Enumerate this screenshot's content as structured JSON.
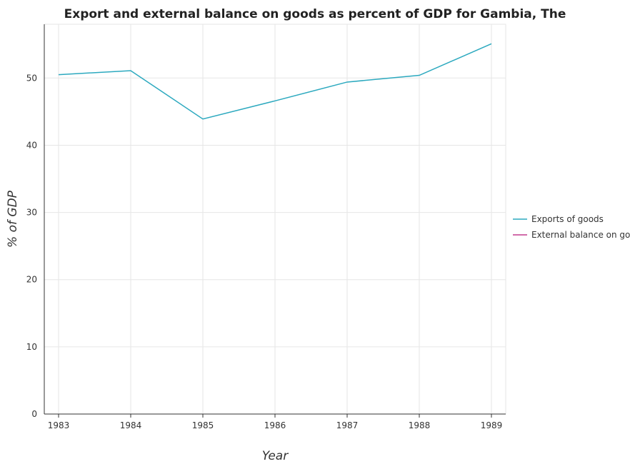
{
  "chart_data": {
    "type": "line",
    "title": "Export and external balance on goods as percent of GDP for Gambia, The",
    "xlabel": "Year",
    "ylabel": "% of GDP",
    "categories": [
      "1983",
      "1984",
      "1985",
      "1986",
      "1987",
      "1988",
      "1989"
    ],
    "ylim": [
      0,
      58
    ],
    "yticks": [
      0,
      10,
      20,
      30,
      40,
      50
    ],
    "grid": true,
    "legend_position": "right",
    "series": [
      {
        "name": "Exports of goods",
        "color": "#2ca9bf",
        "values": [
          50.5,
          51.1,
          43.9,
          46.6,
          49.4,
          50.4,
          55.1
        ]
      },
      {
        "name": "External balance on goods",
        "color": "#c43b8e",
        "values": [
          null,
          null,
          null,
          null,
          null,
          null,
          null
        ]
      }
    ]
  }
}
